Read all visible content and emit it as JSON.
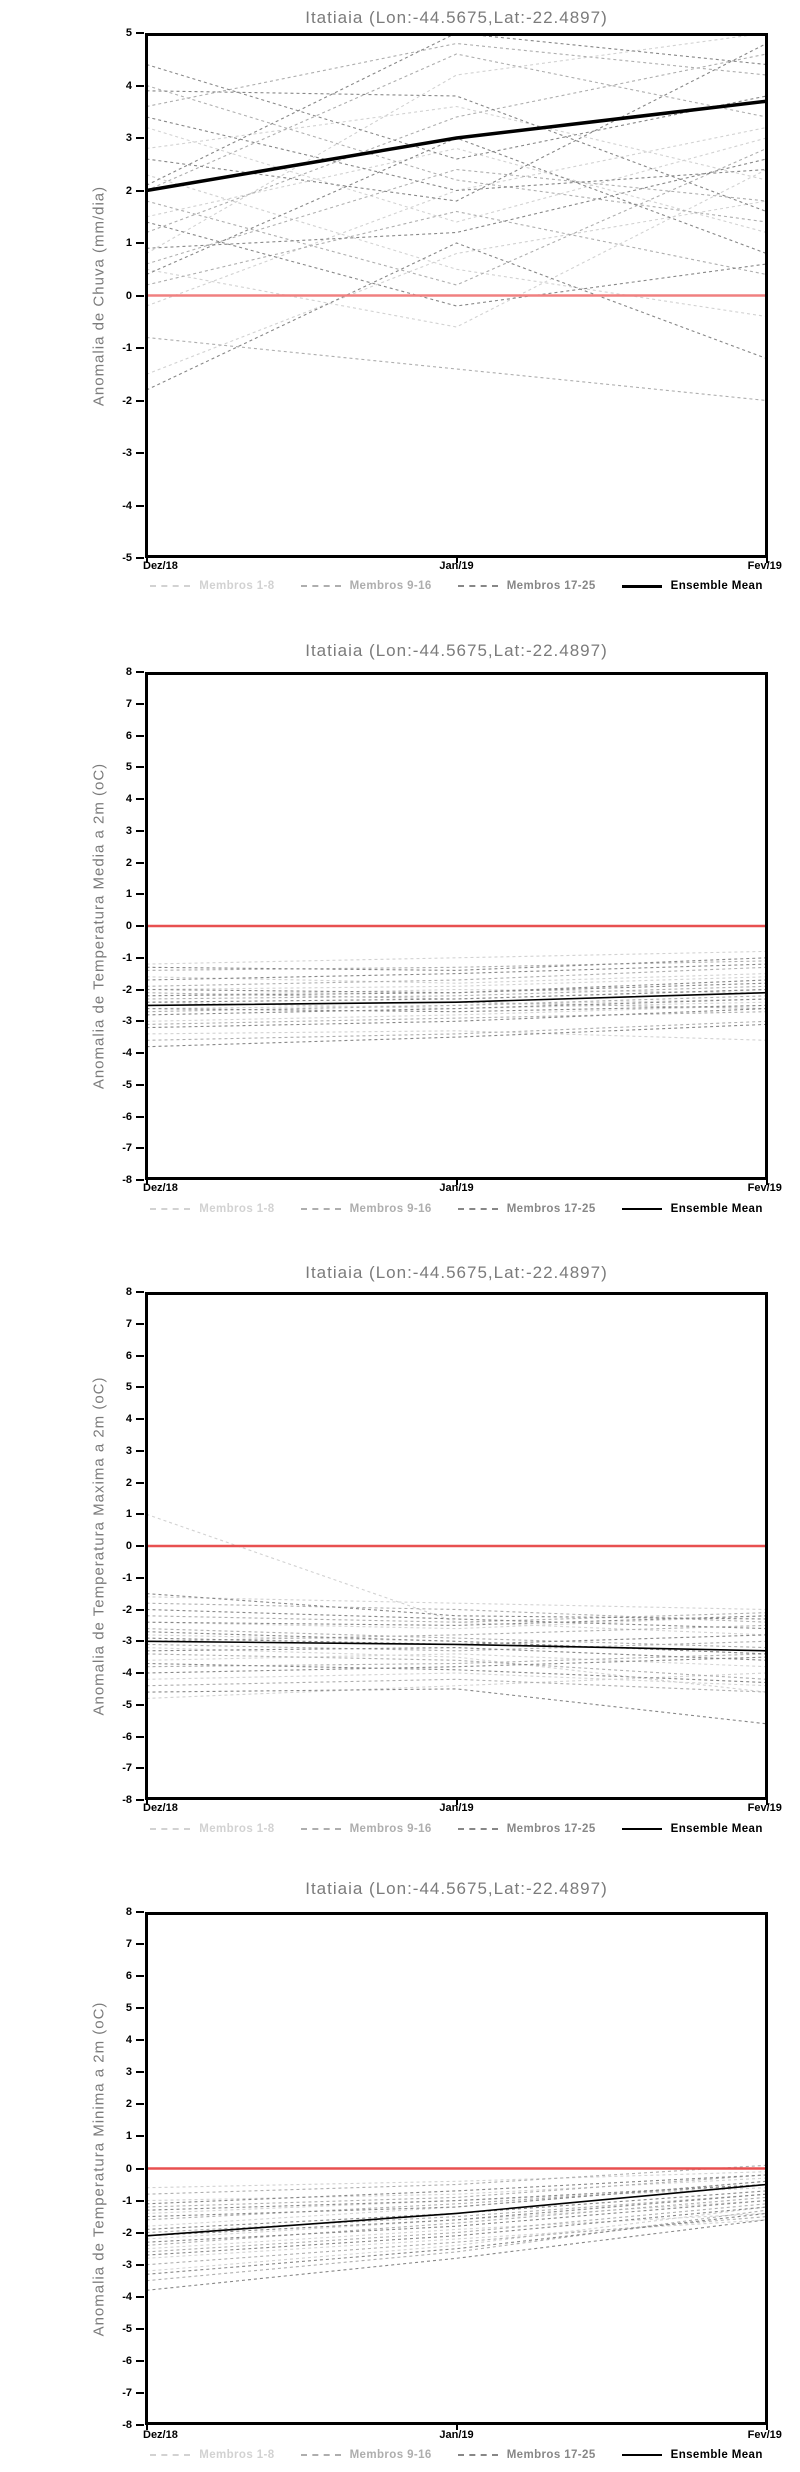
{
  "station": "Itatiaia (Lon:-44.5675,Lat:-22.4897)",
  "legend": {
    "items": [
      {
        "label": "Membros 1-8",
        "color": "#d2d2d2",
        "style": "dashed"
      },
      {
        "label": "Membros 9-16",
        "color": "#aeaeae",
        "style": "dashed"
      },
      {
        "label": "Membros 17-25",
        "color": "#878787",
        "style": "dashed"
      },
      {
        "label": "Ensemble Mean",
        "color": "#000000",
        "style": "solid"
      }
    ]
  },
  "chart_data": [
    {
      "type": "line",
      "title": "Itatiaia (Lon:-44.5675,Lat:-22.4897)",
      "ylabel": "Anomalia de Chuva (mm/dia)",
      "x_categories": [
        "Dez/18",
        "Jan/19",
        "Fev/19"
      ],
      "ylim": [
        -5,
        5
      ],
      "ytick_step": 1,
      "grid": false,
      "legend_position": "bottom",
      "zero_line": {
        "value": 0,
        "color": "#f08080"
      },
      "ensemble_mean": {
        "name": "Ensemble Mean",
        "color": "#000000",
        "width": 3.5,
        "values": [
          2.0,
          3.0,
          3.7
        ]
      },
      "member_groups": [
        {
          "name": "Membros 1-8",
          "color": "#d2d2d2",
          "series": [
            [
              0.8,
              4.2,
              5.0
            ],
            [
              2.3,
              0.5,
              -0.4
            ],
            [
              -0.2,
              2.0,
              3.2
            ],
            [
              1.5,
              2.8,
              1.2
            ],
            [
              0.5,
              -0.6,
              2.4
            ],
            [
              2.8,
              3.6,
              2.2
            ],
            [
              -1.5,
              0.8,
              1.8
            ],
            [
              3.2,
              1.4,
              3.0
            ]
          ]
        },
        {
          "name": "Membros 9-16",
          "color": "#aeaeae",
          "series": [
            [
              1.2,
              3.4,
              4.6
            ],
            [
              4.0,
              2.2,
              1.4
            ],
            [
              0.2,
              1.6,
              0.4
            ],
            [
              2.0,
              4.6,
              3.4
            ],
            [
              -0.8,
              -1.4,
              -2.0
            ],
            [
              1.8,
              0.2,
              2.8
            ],
            [
              3.6,
              4.8,
              4.2
            ],
            [
              0.6,
              2.4,
              1.8
            ]
          ]
        },
        {
          "name": "Membros 17-25",
          "color": "#878787",
          "series": [
            [
              3.9,
              3.8,
              1.6
            ],
            [
              2.1,
              5.0,
              4.4
            ],
            [
              0.9,
              1.2,
              2.6
            ],
            [
              4.4,
              2.6,
              3.8
            ],
            [
              1.4,
              -0.2,
              0.6
            ],
            [
              2.6,
              1.8,
              4.8
            ],
            [
              -1.8,
              1.0,
              -1.2
            ],
            [
              3.4,
              2.0,
              2.4
            ],
            [
              0.4,
              3.0,
              0.8
            ]
          ]
        }
      ]
    },
    {
      "type": "line",
      "title": "Itatiaia (Lon:-44.5675,Lat:-22.4897)",
      "ylabel": "Anomalia de Temperatura Media a 2m (oC)",
      "x_categories": [
        "Dez/18",
        "Jan/19",
        "Fev/19"
      ],
      "ylim": [
        -8,
        8
      ],
      "ytick_step": 1,
      "grid": false,
      "legend_position": "bottom",
      "zero_line": {
        "value": 0,
        "color": "#e85050"
      },
      "ensemble_mean": {
        "name": "Ensemble Mean",
        "color": "#000000",
        "width": 1.6,
        "values": [
          -2.5,
          -2.4,
          -2.1
        ]
      },
      "member_groups": [
        {
          "name": "Membros 1-8",
          "color": "#d2d2d2",
          "series": [
            [
              -1.2,
              -1.0,
              -0.8
            ],
            [
              -2.0,
              -1.9,
              -1.6
            ],
            [
              -2.6,
              -2.5,
              -2.3
            ],
            [
              -3.0,
              -2.8,
              -2.5
            ],
            [
              -1.6,
              -1.8,
              -1.5
            ],
            [
              -2.2,
              -2.0,
              -2.1
            ],
            [
              -3.4,
              -3.3,
              -3.6
            ],
            [
              -2.4,
              -2.6,
              -2.4
            ]
          ]
        },
        {
          "name": "Membros 9-16",
          "color": "#aeaeae",
          "series": [
            [
              -1.4,
              -1.3,
              -1.1
            ],
            [
              -1.9,
              -1.7,
              -1.3
            ],
            [
              -2.3,
              -2.2,
              -1.9
            ],
            [
              -2.7,
              -2.5,
              -2.2
            ],
            [
              -3.1,
              -2.9,
              -2.7
            ],
            [
              -2.1,
              -2.3,
              -2.0
            ],
            [
              -2.5,
              -2.4,
              -2.6
            ],
            [
              -3.6,
              -3.4,
              -3.0
            ]
          ]
        },
        {
          "name": "Membros 17-25",
          "color": "#878787",
          "series": [
            [
              -1.7,
              -1.5,
              -1.2
            ],
            [
              -2.0,
              -2.1,
              -1.7
            ],
            [
              -2.4,
              -2.3,
              -2.0
            ],
            [
              -2.8,
              -2.6,
              -2.3
            ],
            [
              -3.2,
              -3.0,
              -2.6
            ],
            [
              -2.6,
              -2.7,
              -2.5
            ],
            [
              -2.2,
              -2.1,
              -1.8
            ],
            [
              -3.8,
              -3.5,
              -3.1
            ],
            [
              -1.3,
              -1.4,
              -1.0
            ]
          ]
        }
      ]
    },
    {
      "type": "line",
      "title": "Itatiaia (Lon:-44.5675,Lat:-22.4897)",
      "ylabel": "Anomalia de Temperatura Maxima a 2m (oC)",
      "x_categories": [
        "Dez/18",
        "Jan/19",
        "Fev/19"
      ],
      "ylim": [
        -8,
        8
      ],
      "ytick_step": 1,
      "grid": false,
      "legend_position": "bottom",
      "zero_line": {
        "value": 0,
        "color": "#e85050"
      },
      "ensemble_mean": {
        "name": "Ensemble Mean",
        "color": "#000000",
        "width": 1.6,
        "values": [
          -3.0,
          -3.1,
          -3.3
        ]
      },
      "member_groups": [
        {
          "name": "Membros 1-8",
          "color": "#d2d2d2",
          "series": [
            [
              1.0,
              -2.4,
              -2.8
            ],
            [
              -1.6,
              -1.8,
              -2.0
            ],
            [
              -2.8,
              -3.0,
              -3.4
            ],
            [
              -3.6,
              -3.4,
              -3.8
            ],
            [
              -4.2,
              -4.0,
              -4.4
            ],
            [
              -2.4,
              -2.6,
              -2.2
            ],
            [
              -3.2,
              -3.5,
              -4.6
            ],
            [
              -4.8,
              -4.4,
              -4.0
            ]
          ]
        },
        {
          "name": "Membros 9-16",
          "color": "#aeaeae",
          "series": [
            [
              -1.8,
              -2.0,
              -2.4
            ],
            [
              -2.2,
              -2.4,
              -2.1
            ],
            [
              -3.0,
              -2.8,
              -2.5
            ],
            [
              -3.4,
              -3.6,
              -4.2
            ],
            [
              -3.8,
              -3.7,
              -3.4
            ],
            [
              -2.6,
              -2.9,
              -3.2
            ],
            [
              -4.4,
              -4.2,
              -4.6
            ],
            [
              -3.1,
              -3.3,
              -3.0
            ]
          ]
        },
        {
          "name": "Membros 17-25",
          "color": "#878787",
          "series": [
            [
              -1.5,
              -2.2,
              -2.3
            ],
            [
              -2.0,
              -2.3,
              -2.6
            ],
            [
              -2.9,
              -3.1,
              -2.8
            ],
            [
              -3.3,
              -3.2,
              -3.6
            ],
            [
              -3.7,
              -3.9,
              -4.3
            ],
            [
              -4.0,
              -3.8,
              -3.5
            ],
            [
              -2.7,
              -3.0,
              -3.4
            ],
            [
              -4.6,
              -4.5,
              -5.6
            ],
            [
              -2.4,
              -2.5,
              -2.2
            ]
          ]
        }
      ]
    },
    {
      "type": "line",
      "title": "Itatiaia (Lon:-44.5675,Lat:-22.4897)",
      "ylabel": "Anomalia de Temperatura Minima a 2m (oC)",
      "x_categories": [
        "Dez/18",
        "Jan/19",
        "Fev/19"
      ],
      "ylim": [
        -8,
        8
      ],
      "ytick_step": 1,
      "grid": false,
      "legend_position": "bottom",
      "zero_line": {
        "value": 0,
        "color": "#e85050"
      },
      "ensemble_mean": {
        "name": "Ensemble Mean",
        "color": "#000000",
        "width": 1.6,
        "values": [
          -2.1,
          -1.4,
          -0.5
        ]
      },
      "member_groups": [
        {
          "name": "Membros 1-8",
          "color": "#d2d2d2",
          "series": [
            [
              -0.6,
              -0.4,
              -0.1
            ],
            [
              -1.4,
              -1.0,
              -0.6
            ],
            [
              -2.2,
              -1.6,
              -1.0
            ],
            [
              -2.8,
              -2.2,
              -1.6
            ],
            [
              -1.8,
              -1.2,
              -0.4
            ],
            [
              -3.2,
              -2.4,
              -1.2
            ],
            [
              -1.0,
              -0.8,
              -0.3
            ],
            [
              -2.5,
              -1.9,
              -1.4
            ]
          ]
        },
        {
          "name": "Membros 9-16",
          "color": "#aeaeae",
          "series": [
            [
              -0.8,
              -0.5,
              0.1
            ],
            [
              -1.6,
              -1.1,
              -0.5
            ],
            [
              -2.0,
              -1.5,
              -0.8
            ],
            [
              -2.6,
              -2.0,
              -1.1
            ],
            [
              -3.0,
              -2.3,
              -1.5
            ],
            [
              -1.2,
              -0.9,
              -0.2
            ],
            [
              -2.4,
              -1.7,
              -0.9
            ],
            [
              -3.5,
              -2.6,
              -1.3
            ]
          ]
        },
        {
          "name": "Membros 17-25",
          "color": "#878787",
          "series": [
            [
              -1.1,
              -0.7,
              -0.2
            ],
            [
              -1.5,
              -1.2,
              -0.4
            ],
            [
              -1.9,
              -1.4,
              -0.7
            ],
            [
              -2.3,
              -1.8,
              -1.0
            ],
            [
              -2.7,
              -2.1,
              -1.2
            ],
            [
              -3.8,
              -2.8,
              -1.6
            ],
            [
              -1.3,
              -1.0,
              -0.5
            ],
            [
              -2.1,
              -1.6,
              -0.8
            ],
            [
              -3.3,
              -2.5,
              -1.4
            ]
          ]
        }
      ]
    }
  ]
}
